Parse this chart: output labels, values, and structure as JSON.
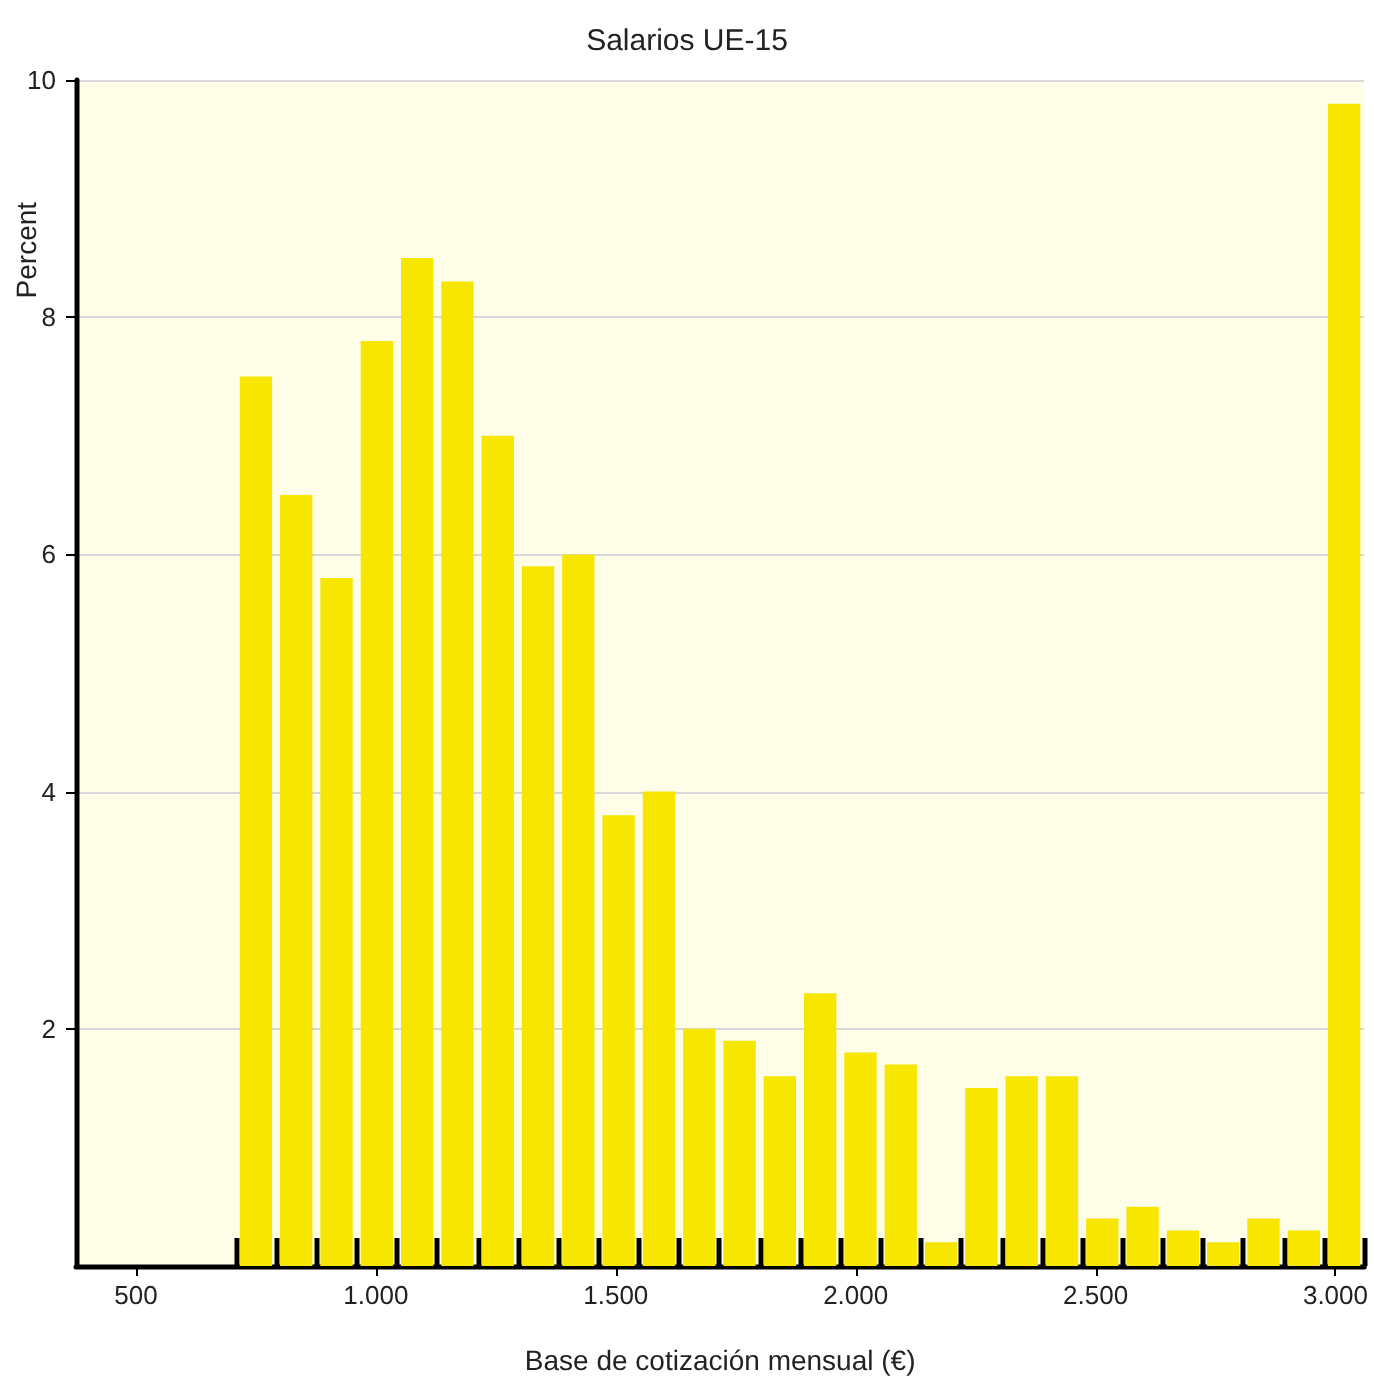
{
  "chart_data": {
    "type": "histogram",
    "title": "Salarios UE-15",
    "xlabel": "Base de cotización mensual (€)",
    "ylabel": "Percent",
    "bins": [
      708,
      792,
      876,
      960,
      1044,
      1128,
      1212,
      1296,
      1380,
      1464,
      1548,
      1632,
      1716,
      1800,
      1884,
      1968,
      2052,
      2136,
      2220,
      2304,
      2388,
      2472,
      2556,
      2640,
      2724,
      2808,
      2892,
      2976,
      3060
    ],
    "values": [
      7.5,
      6.5,
      5.8,
      7.8,
      8.5,
      8.3,
      7.0,
      5.9,
      6.0,
      3.8,
      4.0,
      2.0,
      1.9,
      1.6,
      2.3,
      1.8,
      1.7,
      0.2,
      1.5,
      1.6,
      1.6,
      0.4,
      0.5,
      0.3,
      0.2,
      0.4,
      0.3,
      9.8
    ],
    "color": "#f6e600",
    "xlim": [
      375,
      3060
    ],
    "xticks": [
      {
        "value": 500,
        "label": "500"
      },
      {
        "value": 1000,
        "label": "1.000"
      },
      {
        "value": 1500,
        "label": "1.500"
      },
      {
        "value": 2000,
        "label": "2.000"
      },
      {
        "value": 2500,
        "label": "2.500"
      },
      {
        "value": 3000,
        "label": "3.000"
      }
    ],
    "ylim": [
      0,
      10
    ],
    "yticks": [
      2,
      4,
      6,
      8,
      10
    ],
    "grid": "y"
  }
}
